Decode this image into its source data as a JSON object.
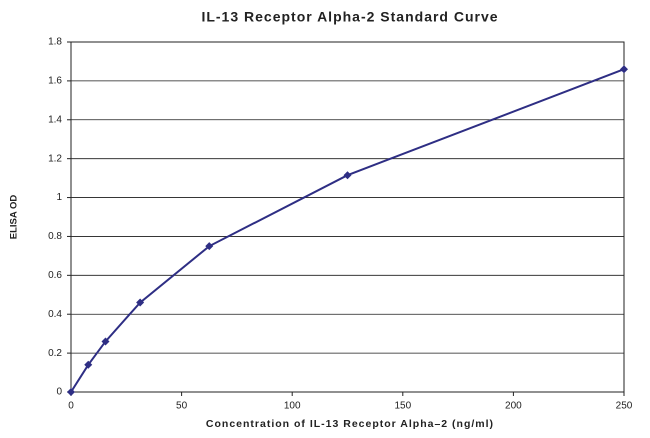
{
  "chart_data": {
    "type": "line",
    "title": "IL-13 Receptor Alpha-2 Standard Curve",
    "x_label": "Concentration of IL-13 Receptor Alpha–2 (ng/ml)",
    "y_label": "ELISA OD",
    "x": [
      0,
      7.8,
      15.6,
      31.25,
      62.5,
      125,
      250
    ],
    "values": [
      0,
      0.14,
      0.26,
      0.46,
      0.75,
      1.115,
      1.66
    ],
    "color": "#2e2e84",
    "xlim": [
      0,
      250
    ],
    "xticks": [
      0,
      50,
      100,
      150,
      200,
      250
    ],
    "ylim": [
      0,
      1.8
    ],
    "yticks": [
      0,
      0.2,
      0.4,
      0.6,
      0.8,
      1,
      1.2,
      1.4,
      1.6,
      1.8
    ],
    "grid": true
  }
}
